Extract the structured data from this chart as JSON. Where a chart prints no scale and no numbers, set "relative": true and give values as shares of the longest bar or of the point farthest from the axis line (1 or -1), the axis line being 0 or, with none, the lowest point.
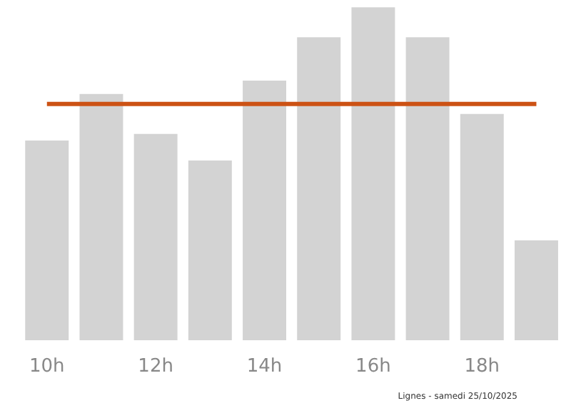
{
  "chart_data": {
    "type": "bar",
    "relative": true,
    "categories": [
      "10h",
      null,
      "12h",
      null,
      "14h",
      null,
      "16h",
      null,
      "18h",
      null
    ],
    "values": [
      0.6,
      0.74,
      0.62,
      0.54,
      0.78,
      0.91,
      1,
      0.91,
      0.68,
      0.3
    ],
    "color": "#d3d3d3",
    "ref_lines": [
      {
        "axis": "y",
        "value": 0.71,
        "color": "#cc5214"
      }
    ],
    "annotations": [
      "Lignes - samedi 25/10/2025"
    ],
    "grid": false
  }
}
